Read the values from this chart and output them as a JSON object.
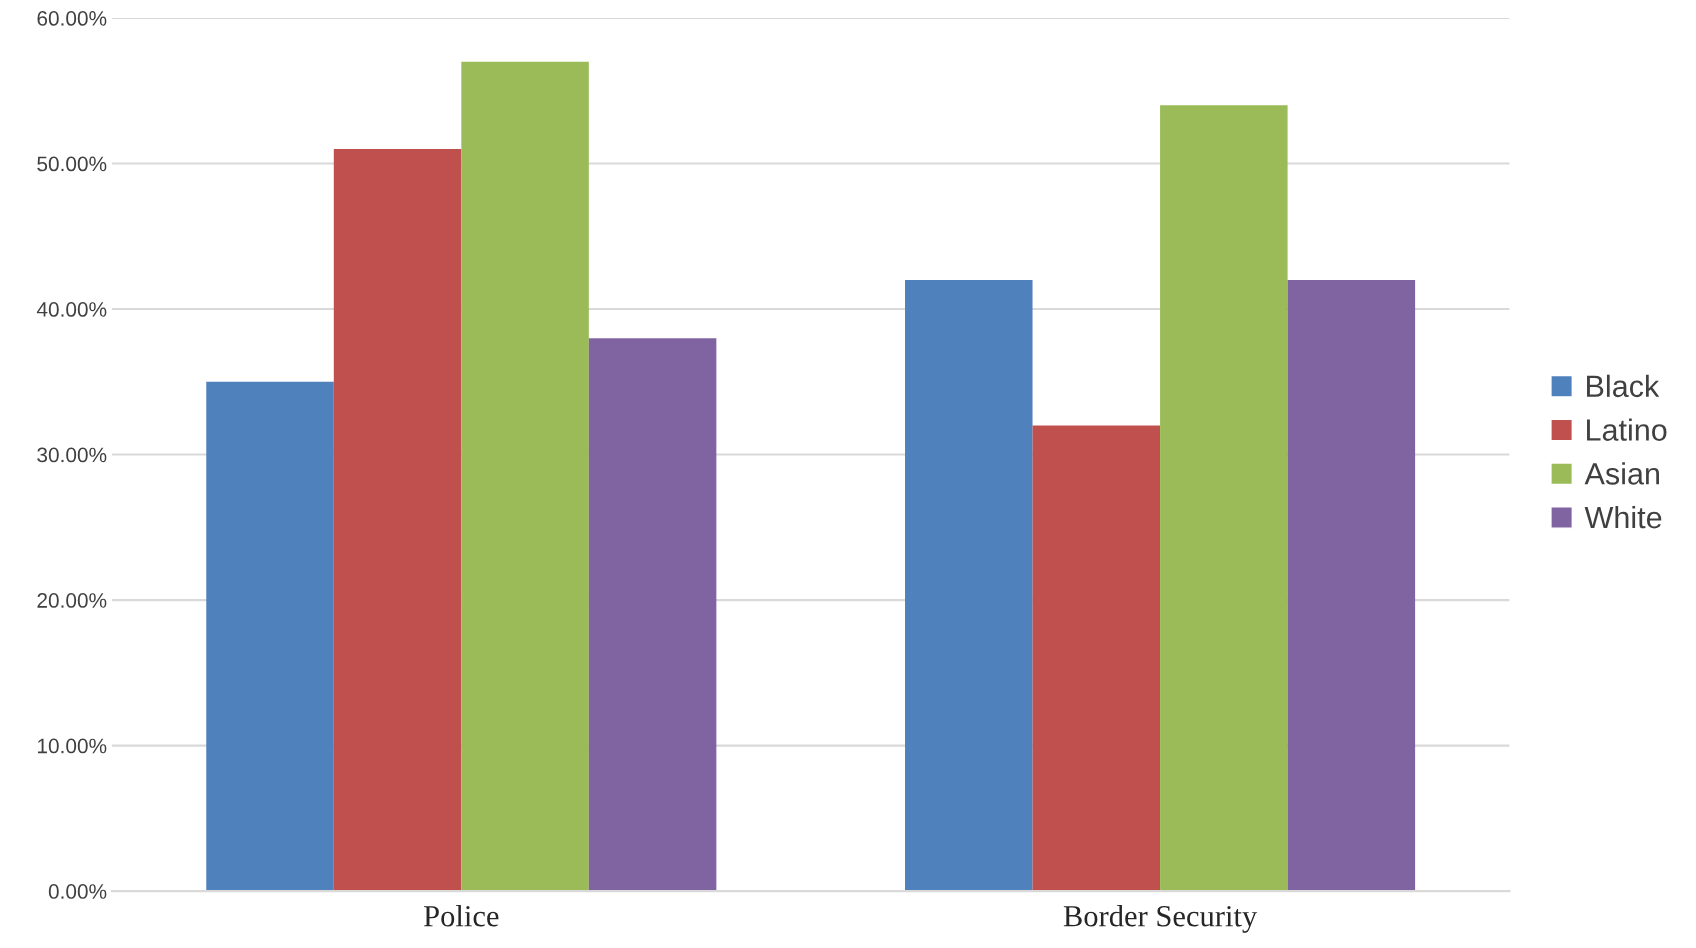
{
  "chart_data": {
    "type": "bar",
    "categories": [
      "Police",
      "Border Security"
    ],
    "series": [
      {
        "name": "Black",
        "color": "#4f81bd",
        "values": [
          35,
          42
        ]
      },
      {
        "name": "Latino",
        "color": "#c0504d",
        "values": [
          51,
          32
        ]
      },
      {
        "name": "Asian",
        "color": "#9bbb59",
        "values": [
          57,
          54
        ]
      },
      {
        "name": "White",
        "color": "#8064a2",
        "values": [
          38,
          42
        ]
      }
    ],
    "ylim": [
      0,
      60
    ],
    "yticks": [
      {
        "value": 0,
        "label": "0.00%"
      },
      {
        "value": 10,
        "label": "10.00%"
      },
      {
        "value": 20,
        "label": "20.00%"
      },
      {
        "value": 30,
        "label": "30.00%"
      },
      {
        "value": 40,
        "label": "40.00%"
      },
      {
        "value": 50,
        "label": "50.00%"
      },
      {
        "value": 60,
        "label": "60.00%"
      }
    ],
    "grid": "y",
    "legend": "right"
  }
}
